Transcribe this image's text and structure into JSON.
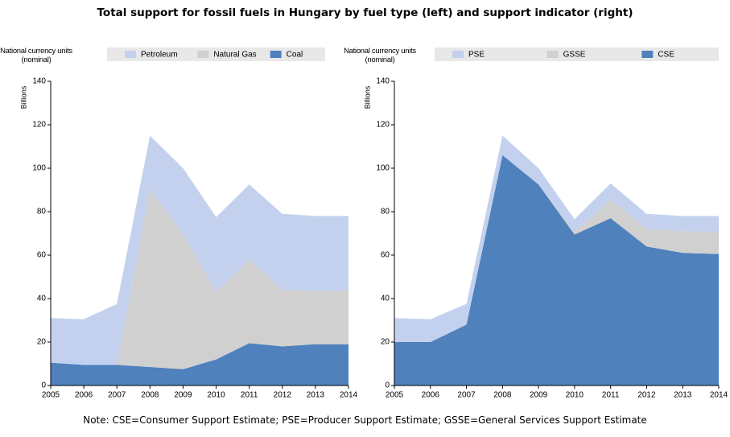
{
  "title": "Total support for fossil fuels in Hungary by fuel type (left) and support indicator (right)",
  "note": "Note: CSE=Consumer Support Estimate; PSE=Producer Support Estimate; GSSE=General Services Support Estimate",
  "chart_data": [
    {
      "type": "area",
      "stacked": true,
      "y_label": "National currency units (nominal)",
      "y_unit": "Billions",
      "x": [
        2005,
        2006,
        2007,
        2008,
        2009,
        2010,
        2011,
        2012,
        2013,
        2014
      ],
      "xlim": [
        2005,
        2014
      ],
      "xticks": [
        2005,
        2006,
        2007,
        2008,
        2009,
        2010,
        2011,
        2012,
        2013,
        2014
      ],
      "ylim": [
        0,
        140
      ],
      "yticks": [
        0,
        20,
        40,
        60,
        80,
        100,
        120,
        140
      ],
      "series": [
        {
          "name": "Petroleum",
          "color": "#c3d1ee",
          "values": [
            20.5,
            21,
            28,
            25,
            30,
            34.5,
            34.5,
            35,
            34.5,
            34.5
          ]
        },
        {
          "name": "Natural Gas",
          "color": "#d0d0d0",
          "values": [
            0,
            0,
            0,
            81.5,
            62.5,
            31,
            38.5,
            26,
            24.5,
            24.5
          ]
        },
        {
          "name": "Coal",
          "color": "#4f81bd",
          "values": [
            10.5,
            9.5,
            9.5,
            8.5,
            7.5,
            12,
            19.5,
            18,
            19,
            19
          ]
        }
      ]
    },
    {
      "type": "area",
      "stacked": true,
      "y_label": "National currency units (nominal)",
      "y_unit": "Billions",
      "x": [
        2005,
        2006,
        2007,
        2008,
        2009,
        2010,
        2011,
        2012,
        2013,
        2014
      ],
      "xlim": [
        2005,
        2014
      ],
      "xticks": [
        2005,
        2006,
        2007,
        2008,
        2009,
        2010,
        2011,
        2012,
        2013,
        2014
      ],
      "ylim": [
        0,
        140
      ],
      "yticks": [
        0,
        20,
        40,
        60,
        80,
        100,
        120,
        140
      ],
      "series": [
        {
          "name": "PSE",
          "color": "#c3d1ee",
          "values": [
            11,
            10.5,
            9.5,
            9,
            7.5,
            6,
            7.5,
            7,
            7,
            7.5
          ]
        },
        {
          "name": "GSSE",
          "color": "#d0d0d0",
          "values": [
            0,
            0,
            0,
            0,
            0,
            1,
            8.5,
            8,
            10,
            10
          ]
        },
        {
          "name": "CSE",
          "color": "#4f81bd",
          "values": [
            20,
            20,
            28,
            106,
            92.5,
            69.5,
            77,
            64,
            61,
            60.5
          ]
        }
      ]
    }
  ]
}
